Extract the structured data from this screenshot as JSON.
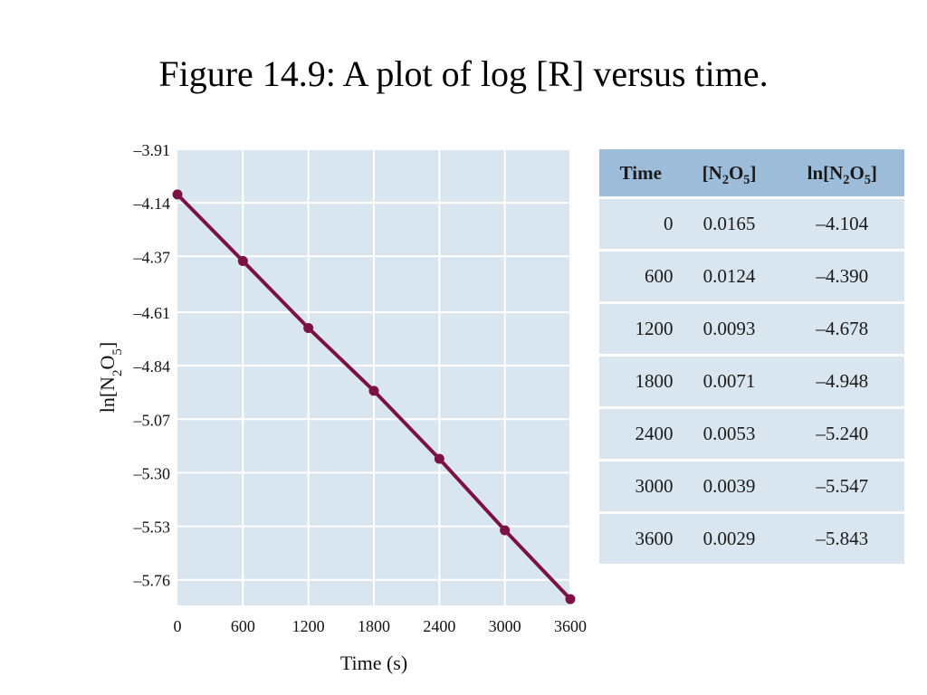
{
  "title": "Figure 14.9: A plot of log [R] versus time.",
  "chart_data": {
    "type": "line",
    "xlabel": "Time (s)",
    "ylabel": "ln[N2O5]",
    "ylabel_parts": [
      "ln[N",
      "2",
      "O",
      "5",
      "]"
    ],
    "x_ticks": [
      "0",
      "600",
      "1200",
      "1800",
      "2400",
      "3000",
      "3600"
    ],
    "y_ticks": [
      "–3.91",
      "–4.14",
      "–4.37",
      "–4.61",
      "–4.84",
      "–5.07",
      "–5.30",
      "–5.53",
      "–5.76"
    ],
    "xlim": [
      0,
      3600
    ],
    "ylim": [
      -5.87,
      -3.91
    ],
    "grid": true,
    "series": [
      {
        "x": [
          0,
          600,
          1200,
          1800,
          2400,
          3000,
          3600
        ],
        "y": [
          -4.104,
          -4.39,
          -4.678,
          -4.948,
          -5.24,
          -5.547,
          -5.843
        ]
      }
    ],
    "colors": {
      "line": "#7a1246",
      "marker": "#7a1246",
      "plot_bg": "#d9e5ef",
      "grid": "#ffffff"
    }
  },
  "table": {
    "headers": [
      {
        "text": "Time"
      },
      {
        "parts": [
          "[N",
          "2",
          "O",
          "5",
          "]"
        ]
      },
      {
        "parts": [
          "ln[N",
          "2",
          "O",
          "5",
          "]"
        ]
      }
    ],
    "rows": [
      [
        "0",
        "0.0165",
        "–4.104"
      ],
      [
        "600",
        "0.0124",
        "–4.390"
      ],
      [
        "1200",
        "0.0093",
        "–4.678"
      ],
      [
        "1800",
        "0.0071",
        "–4.948"
      ],
      [
        "2400",
        "0.0053",
        "–5.240"
      ],
      [
        "3000",
        "0.0039",
        "–5.547"
      ],
      [
        "3600",
        "0.0029",
        "–5.843"
      ]
    ],
    "colors": {
      "header_bg": "#9cbcd9",
      "row_bg": "#d9e5ef"
    }
  }
}
